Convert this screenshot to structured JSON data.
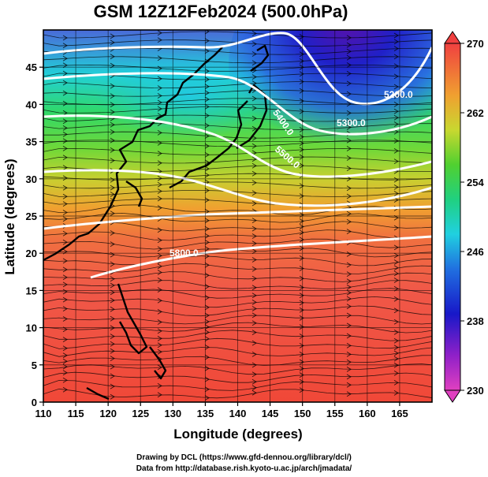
{
  "title": "GSM 12Z12Feb2024 (500.0hPa)",
  "xlabel": "Longitude (degrees)",
  "ylabel": "Latitude  (degrees)",
  "x_ticks": [
    "110",
    "115",
    "120",
    "125",
    "130",
    "135",
    "140",
    "145",
    "150",
    "155",
    "160",
    "165"
  ],
  "y_ticks": [
    "0",
    "5",
    "10",
    "15",
    "20",
    "25",
    "30",
    "35",
    "40",
    "45"
  ],
  "colorbar_ticks": [
    "230",
    "238",
    "246",
    "254",
    "262",
    "270"
  ],
  "contour_labels": [
    {
      "text": "5200.0"
    },
    {
      "text": "5300.0"
    },
    {
      "text": "5400.0"
    },
    {
      "text": "5500.0"
    },
    {
      "text": "5800.0"
    }
  ],
  "credit_line1": "Drawing by DCL (https://www.gfd-dennou.org/library/dcl/)",
  "credit_line2": "Data from http://database.rish.kyoto-u.ac.jp/arch/jmadata/",
  "chart_data": {
    "type": "heatmap",
    "field": "temperature shading with geopotential height contours and wind streamlines",
    "xlim": [
      110,
      170
    ],
    "ylim": [
      0,
      50
    ],
    "colorbar_range": [
      230,
      270
    ],
    "colorbar_ticks": [
      230,
      238,
      246,
      254,
      262,
      270
    ],
    "height_contours": [
      5200,
      5300,
      5400,
      5500,
      5800
    ],
    "colors": {
      "warm": "#ff5040",
      "cold": "#1010c0",
      "contour": "#ffffff"
    }
  }
}
